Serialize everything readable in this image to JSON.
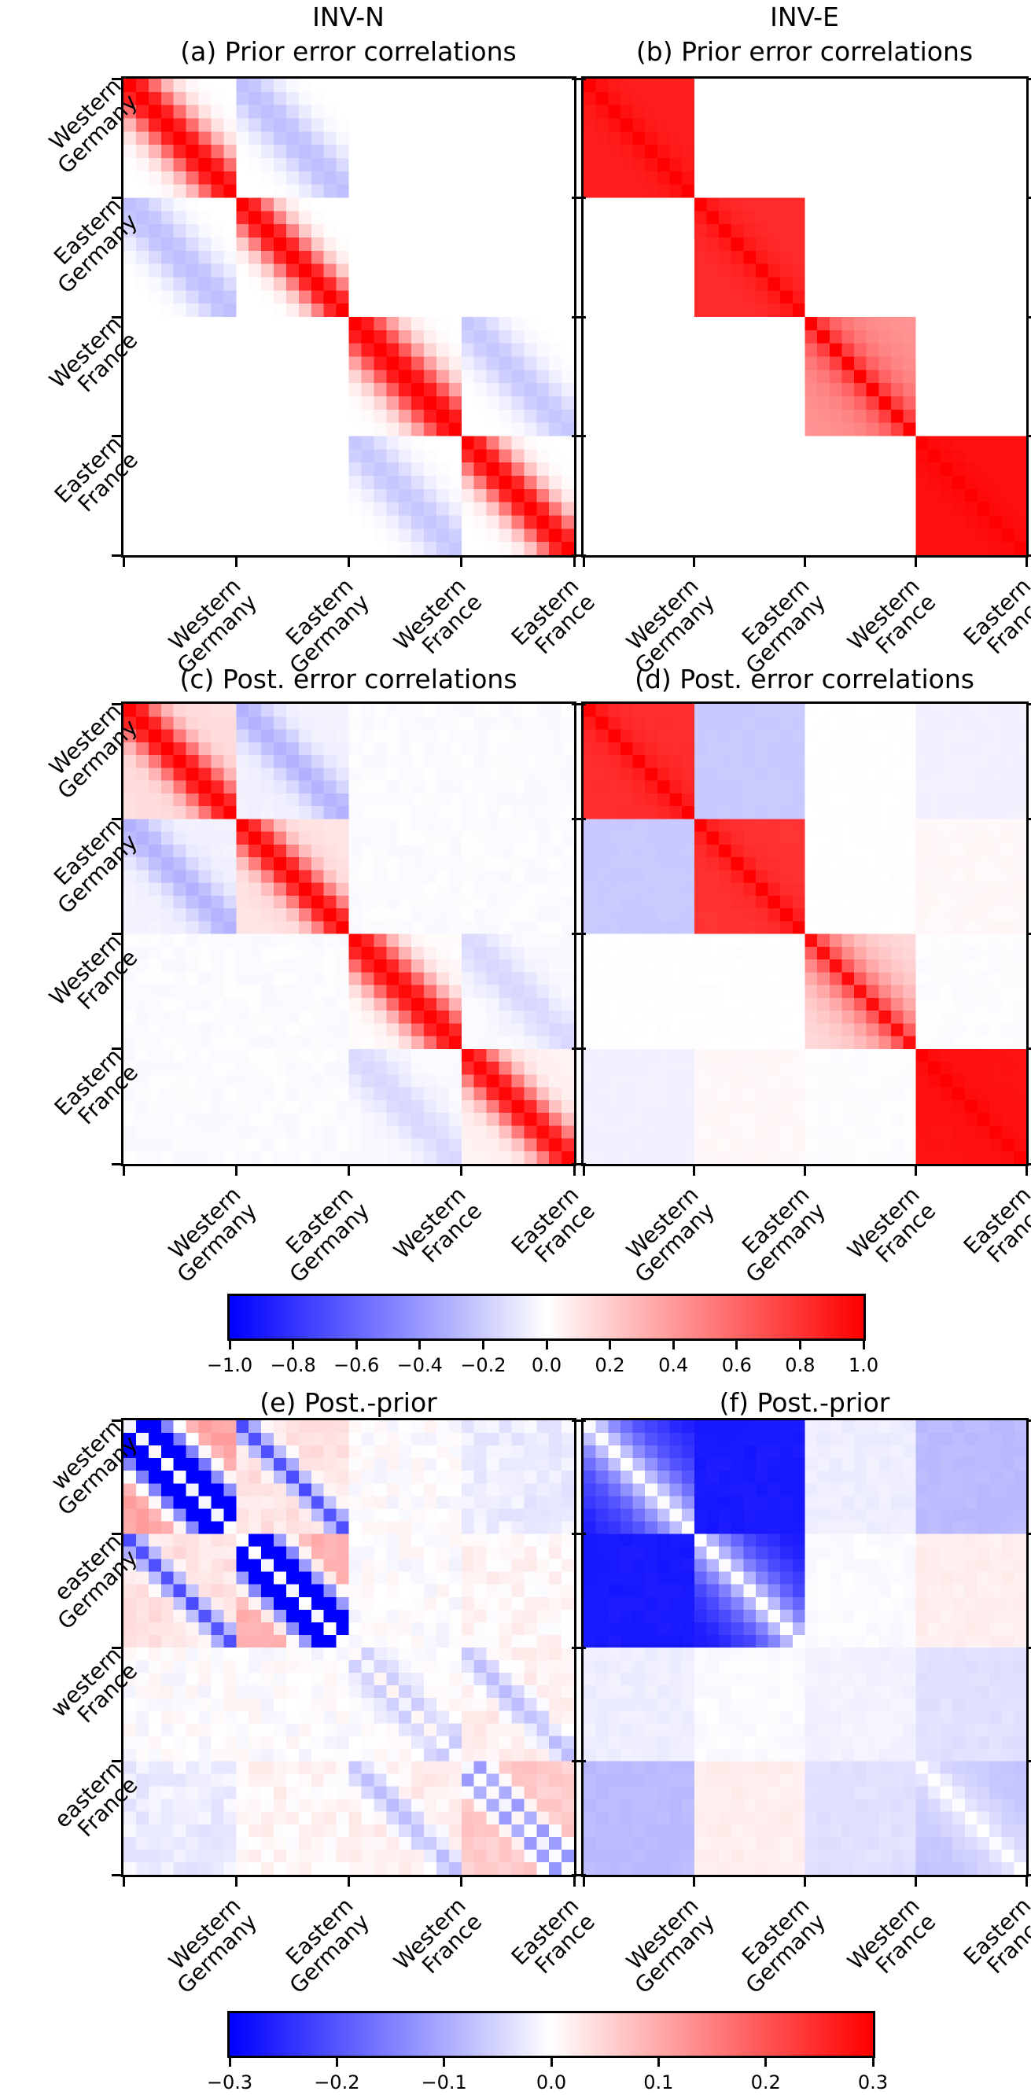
{
  "figure": {
    "columns": [
      {
        "title": "INV-N"
      },
      {
        "title": "INV-E"
      }
    ],
    "panels": [
      {
        "id": "a",
        "title": "(a) Prior error correlations"
      },
      {
        "id": "b",
        "title": "(b) Prior error correlations"
      },
      {
        "id": "c",
        "title": "(c) Post. error correlations"
      },
      {
        "id": "d",
        "title": "(d) Post. error correlations"
      },
      {
        "id": "e",
        "title": "(e) Post.-prior"
      },
      {
        "id": "f",
        "title": "(f) Post.-prior"
      }
    ],
    "x_tick_labels": [
      [
        "Western",
        "Germany"
      ],
      [
        "Eastern",
        "Germany"
      ],
      [
        "Western",
        "France"
      ],
      [
        "Eastern",
        "France"
      ]
    ],
    "y_tick_labels_capital": [
      [
        "Western",
        "Germany"
      ],
      [
        "Eastern",
        "Germany"
      ],
      [
        "Western",
        "France"
      ],
      [
        "Eastern",
        "France"
      ]
    ],
    "y_tick_labels_lower": [
      [
        "western",
        "Germany"
      ],
      [
        "eastern",
        "Germany"
      ],
      [
        "western",
        "France"
      ],
      [
        "eastern",
        "France"
      ]
    ],
    "colorbars": [
      {
        "tick_labels": [
          "−1.0",
          "−0.8",
          "−0.6",
          "−0.4",
          "−0.2",
          "0.0",
          "0.2",
          "0.4",
          "0.6",
          "0.8",
          "1.0"
        ]
      },
      {
        "tick_labels": [
          "−0.3",
          "−0.2",
          "−0.1",
          "0.0",
          "0.1",
          "0.2",
          "0.3"
        ]
      }
    ]
  },
  "chart_data": {
    "type": "heatmap",
    "n": 36,
    "block_size": 9,
    "colormap": "bwr",
    "regions": [
      "Western Germany",
      "Eastern Germany",
      "Western France",
      "Eastern France"
    ],
    "colorbar_ranges": [
      [
        -1.0,
        1.0
      ],
      [
        -0.3,
        0.3
      ]
    ],
    "panels": [
      {
        "id": "a",
        "vmin": -1,
        "vmax": 1,
        "noise": 0,
        "blocks": [
          [
            {
              "base": 0,
              "terms": [
                {
                  "amp": 1,
                  "len": 2.7,
                  "kind": "gauss"
                }
              ]
            },
            {
              "base": 0,
              "terms": [
                {
                  "amp": -0.25,
                  "len": 2.7,
                  "kind": "gauss"
                }
              ]
            },
            {
              "base": 0
            },
            {
              "base": 0
            }
          ],
          [
            {
              "base": 0,
              "terms": [
                {
                  "amp": -0.25,
                  "len": 2.7,
                  "kind": "gauss"
                }
              ]
            },
            {
              "base": 0,
              "terms": [
                {
                  "amp": 1,
                  "len": 2.4,
                  "kind": "gauss"
                }
              ]
            },
            {
              "base": 0
            },
            {
              "base": 0
            }
          ],
          [
            {
              "base": 0
            },
            {
              "base": 0
            },
            {
              "base": 0,
              "terms": [
                {
                  "amp": 1,
                  "len": 3.0,
                  "kind": "gauss"
                }
              ]
            },
            {
              "base": 0,
              "terms": [
                {
                  "amp": -0.22,
                  "len": 2.7,
                  "kind": "gauss"
                }
              ]
            }
          ],
          [
            {
              "base": 0
            },
            {
              "base": 0
            },
            {
              "base": 0,
              "terms": [
                {
                  "amp": -0.22,
                  "len": 2.7,
                  "kind": "gauss"
                }
              ]
            },
            {
              "base": 0,
              "terms": [
                {
                  "amp": 1,
                  "len": 2.5,
                  "kind": "gauss"
                }
              ]
            }
          ]
        ]
      },
      {
        "id": "b",
        "vmin": -1,
        "vmax": 1,
        "noise": 0,
        "blocks": [
          [
            {
              "base": 0.88,
              "terms": [
                {
                  "amp": 0.12,
                  "len": 1.2,
                  "kind": "exp"
                }
              ]
            },
            {
              "base": 0
            },
            {
              "base": 0
            },
            {
              "base": 0
            }
          ],
          [
            {
              "base": 0
            },
            {
              "base": 0.83,
              "terms": [
                {
                  "amp": 0.17,
                  "len": 1.2,
                  "kind": "exp"
                }
              ]
            },
            {
              "base": 0
            },
            {
              "base": 0
            }
          ],
          [
            {
              "base": 0
            },
            {
              "base": 0
            },
            {
              "base": 0.42,
              "terms": [
                {
                  "amp": 0.58,
                  "len": 1.8,
                  "kind": "exp"
                }
              ]
            },
            {
              "base": 0
            }
          ],
          [
            {
              "base": 0
            },
            {
              "base": 0
            },
            {
              "base": 0
            },
            {
              "base": 0.94,
              "terms": [
                {
                  "amp": 0.06,
                  "len": 1.0,
                  "kind": "exp"
                }
              ]
            }
          ]
        ]
      },
      {
        "id": "c",
        "vmin": -1,
        "vmax": 1,
        "noise": 0.012,
        "blocks": [
          [
            {
              "base": 0.13,
              "terms": [
                {
                  "amp": 0.87,
                  "len": 2.3,
                  "kind": "gauss"
                }
              ]
            },
            {
              "base": -0.05,
              "terms": [
                {
                  "amp": -0.25,
                  "len": 2.2,
                  "kind": "gauss"
                }
              ]
            },
            {
              "base": -0.015
            },
            {
              "base": -0.015
            }
          ],
          [
            {
              "base": -0.05,
              "terms": [
                {
                  "amp": -0.25,
                  "len": 2.2,
                  "kind": "gauss"
                }
              ]
            },
            {
              "base": 0.11,
              "terms": [
                {
                  "amp": 0.89,
                  "len": 2.2,
                  "kind": "gauss"
                }
              ]
            },
            {
              "base": -0.015
            },
            {
              "base": -0.015
            }
          ],
          [
            {
              "base": -0.015
            },
            {
              "base": -0.015
            },
            {
              "base": 0.02,
              "terms": [
                {
                  "amp": 0.96,
                  "len": 2.7,
                  "kind": "gauss"
                }
              ]
            },
            {
              "base": -0.02,
              "terms": [
                {
                  "amp": -0.13,
                  "len": 2.5,
                  "kind": "gauss"
                }
              ]
            }
          ],
          [
            {
              "base": -0.015
            },
            {
              "base": -0.015
            },
            {
              "base": -0.02,
              "terms": [
                {
                  "amp": -0.13,
                  "len": 2.5,
                  "kind": "gauss"
                }
              ]
            },
            {
              "base": 0.05,
              "terms": [
                {
                  "amp": 0.93,
                  "len": 2.4,
                  "kind": "gauss"
                }
              ]
            }
          ]
        ]
      },
      {
        "id": "d",
        "vmin": -1,
        "vmax": 1,
        "noise": 0.006,
        "blocks": [
          [
            {
              "base": 0.82,
              "terms": [
                {
                  "amp": 0.18,
                  "len": 1.1,
                  "kind": "exp"
                }
              ]
            },
            {
              "base": -0.21
            },
            {
              "base": 0
            },
            {
              "base": -0.055
            }
          ],
          [
            {
              "base": -0.21
            },
            {
              "base": 0.8,
              "terms": [
                {
                  "amp": 0.2,
                  "len": 1.1,
                  "kind": "exp"
                }
              ]
            },
            {
              "base": 0.005
            },
            {
              "base": 0.03
            }
          ],
          [
            {
              "base": 0
            },
            {
              "base": 0.005
            },
            {
              "base": 0.13,
              "terms": [
                {
                  "amp": 0.82,
                  "len": 2.2,
                  "kind": "exp"
                }
              ]
            },
            {
              "base": -0.01
            }
          ],
          [
            {
              "base": -0.055
            },
            {
              "base": 0.03
            },
            {
              "base": -0.01
            },
            {
              "base": 0.93,
              "terms": [
                {
                  "amp": 0.07,
                  "len": 1.0,
                  "kind": "exp"
                }
              ]
            }
          ]
        ]
      },
      {
        "id": "e",
        "vmin": -0.3,
        "vmax": 0.3,
        "noise": 0.016,
        "blocks": [
          [
            {
              "base": 0.11,
              "zero_diag": true,
              "terms": [
                {
                  "amp": -0.55,
                  "len": 2.3,
                  "kind": "gauss",
                  "off": 1
                }
              ]
            },
            {
              "base": 0.035,
              "terms": [
                {
                  "amp": -0.24,
                  "len": 1.2,
                  "kind": "gauss"
                }
              ]
            },
            {
              "base": 0
            },
            {
              "base": -0.02
            }
          ],
          [
            {
              "base": 0.035,
              "terms": [
                {
                  "amp": -0.24,
                  "len": 1.2,
                  "kind": "gauss"
                }
              ]
            },
            {
              "base": 0.1,
              "zero_diag": true,
              "terms": [
                {
                  "amp": -0.52,
                  "len": 2.2,
                  "kind": "gauss",
                  "off": 1
                }
              ]
            },
            {
              "base": 0
            },
            {
              "base": 0.01
            }
          ],
          [
            {
              "base": 0
            },
            {
              "base": 0
            },
            {
              "base": 0.005,
              "zero_diag": true,
              "terms": [
                {
                  "amp": -0.06,
                  "len": 1.6,
                  "kind": "gauss",
                  "off": 1
                }
              ]
            },
            {
              "base": 0.02,
              "terms": [
                {
                  "amp": -0.09,
                  "len": 1.5,
                  "kind": "gauss"
                }
              ]
            }
          ],
          [
            {
              "base": -0.02
            },
            {
              "base": 0.01
            },
            {
              "base": 0.02,
              "terms": [
                {
                  "amp": -0.09,
                  "len": 1.5,
                  "kind": "gauss"
                }
              ]
            },
            {
              "base": 0.06,
              "zero_diag": true,
              "terms": [
                {
                  "amp": -0.17,
                  "len": 0.9,
                  "kind": "gauss",
                  "off": 1
                }
              ]
            }
          ]
        ]
      },
      {
        "id": "f",
        "vmin": -0.3,
        "vmax": 0.3,
        "noise": 0.005,
        "blocks": [
          [
            {
              "base": -0.28,
              "terms": [
                {
                  "amp": 0.28,
                  "len": 3.2,
                  "kind": "exp"
                }
              ]
            },
            {
              "base": -0.27
            },
            {
              "base": -0.02
            },
            {
              "base": -0.08
            }
          ],
          [
            {
              "base": -0.27
            },
            {
              "base": -0.28,
              "terms": [
                {
                  "amp": 0.28,
                  "len": 2.8,
                  "kind": "exp"
                }
              ]
            },
            {
              "base": -0.005
            },
            {
              "base": 0.02
            }
          ],
          [
            {
              "base": -0.02
            },
            {
              "base": -0.005
            },
            {
              "base": -0.015
            },
            {
              "base": -0.035
            }
          ],
          [
            {
              "base": -0.08
            },
            {
              "base": 0.02
            },
            {
              "base": -0.035
            },
            {
              "base": -0.07,
              "terms": [
                {
                  "amp": 0.07,
                  "len": 2.0,
                  "kind": "exp"
                }
              ]
            }
          ]
        ]
      }
    ]
  }
}
